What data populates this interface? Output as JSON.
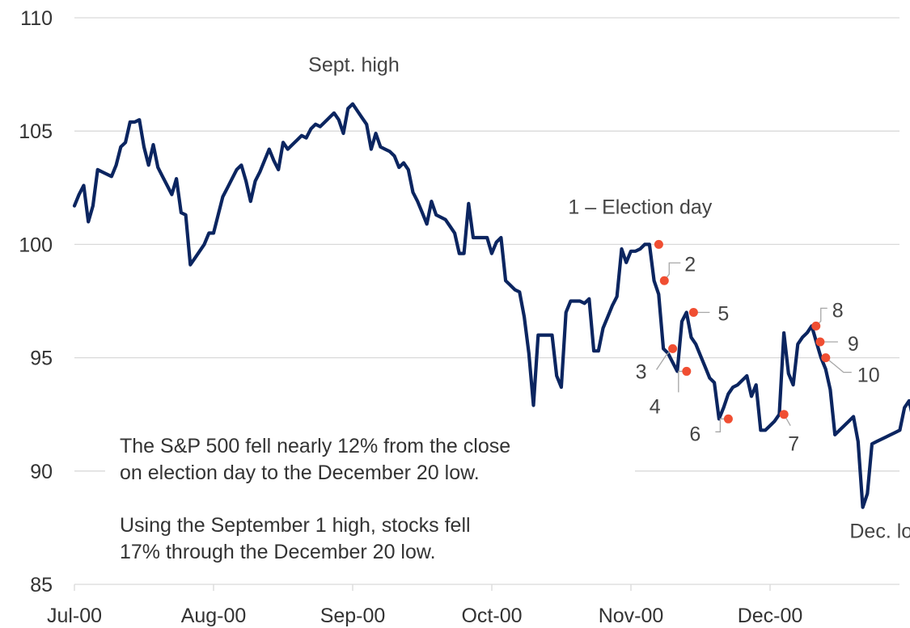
{
  "chart_data": {
    "type": "line",
    "ylim": [
      85,
      110
    ],
    "yticks": [
      85,
      90,
      95,
      100,
      105,
      110
    ],
    "x_tick_labels": [
      "Jul-00",
      "Aug-00",
      "Sep-00",
      "Oct-00",
      "Nov-00",
      "Dec-00"
    ],
    "grid": true,
    "series_color": "#0b2560",
    "marker_color": "#f04e32",
    "series": [
      {
        "values": [
          101.7,
          102.2,
          102.6,
          101.0,
          101.7,
          103.3,
          103.2,
          103.1,
          103.0,
          103.5,
          104.3,
          104.5,
          105.4,
          105.4,
          105.5,
          104.3,
          103.5,
          104.4,
          103.4,
          103.0,
          102.6,
          102.2,
          102.9,
          101.4,
          101.3,
          99.1,
          99.4,
          99.7,
          100.0,
          100.5,
          100.5,
          101.3,
          102.1,
          102.5,
          102.9,
          103.3,
          103.5,
          102.8,
          101.9,
          102.8,
          103.2,
          103.7,
          104.2,
          103.7,
          103.3,
          104.5,
          104.2,
          104.4,
          104.6,
          104.8,
          104.7,
          105.1,
          105.3,
          105.2,
          105.4,
          105.6,
          105.8,
          105.5,
          104.9,
          106.0,
          106.2,
          105.9,
          105.6,
          105.3,
          104.2,
          104.9,
          104.3,
          104.2,
          104.1,
          103.9,
          103.4,
          103.6,
          103.3,
          102.3,
          101.9,
          101.4,
          100.9,
          101.9,
          101.3,
          101.2,
          101.1,
          100.8,
          100.5,
          99.6,
          99.6,
          101.8,
          100.3,
          100.3,
          100.3,
          100.3,
          99.6,
          100.1,
          100.3,
          98.4,
          98.2,
          98.0,
          97.9,
          96.8,
          95.2,
          92.9,
          96.0,
          96.0,
          96.0,
          96.0,
          94.2,
          93.7,
          97.0,
          97.5,
          97.5,
          97.5,
          97.4,
          97.6,
          95.3,
          95.3,
          96.3,
          96.8,
          97.3,
          97.7,
          99.8,
          99.2,
          99.7,
          99.7,
          99.8,
          100.0,
          100.0,
          98.4,
          97.8,
          95.4,
          95.2,
          94.8,
          94.4,
          96.6,
          97.0,
          95.9,
          95.6,
          95.1,
          94.6,
          94.1,
          93.9,
          92.3,
          92.8,
          93.4,
          93.7,
          93.8,
          94.0,
          94.2,
          93.3,
          93.8,
          91.8,
          91.8,
          92.0,
          92.2,
          92.5,
          96.1,
          94.3,
          93.8,
          95.6,
          95.9,
          96.1,
          96.4,
          95.7,
          95.0,
          94.5,
          93.6,
          91.6,
          91.8,
          92.0,
          92.2,
          92.4,
          91.3,
          88.4,
          89.0,
          91.2,
          91.3,
          91.4,
          91.5,
          91.6,
          91.7,
          91.8,
          92.8,
          93.1,
          92.2
        ],
        "x_start": 0,
        "x_step": 0.03333
      }
    ],
    "annotations": [
      {
        "label": "Sept. high",
        "x": 2.03,
        "y": 106.2
      },
      {
        "label": "1 – Election day",
        "x": 4.2,
        "y": 100.0,
        "marker": true
      },
      {
        "label": "2",
        "x": 4.24,
        "y": 98.4,
        "marker": true
      },
      {
        "label": "3",
        "x": 4.3,
        "y": 95.4,
        "marker": true
      },
      {
        "label": "4",
        "x": 4.4,
        "y": 94.4,
        "marker": true
      },
      {
        "label": "5",
        "x": 4.45,
        "y": 97.0,
        "marker": true
      },
      {
        "label": "6",
        "x": 4.7,
        "y": 92.3,
        "marker": true
      },
      {
        "label": "7",
        "x": 5.1,
        "y": 92.5,
        "marker": true
      },
      {
        "label": "8",
        "x": 5.33,
        "y": 96.4,
        "marker": true
      },
      {
        "label": "9",
        "x": 5.36,
        "y": 95.7,
        "marker": true
      },
      {
        "label": "10",
        "x": 5.4,
        "y": 95.0,
        "marker": true
      },
      {
        "label": "Dec. low",
        "x": 5.63,
        "y": 88.4
      }
    ],
    "notes": [
      [
        "The S&P 500 fell nearly 12% from the close",
        "on election day to the December 20 low."
      ],
      [
        "Using the September 1 high, stocks fell",
        "17% through the December 20 low."
      ]
    ]
  }
}
